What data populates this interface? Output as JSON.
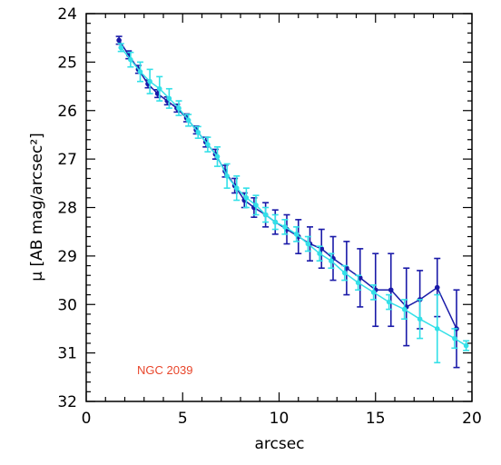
{
  "chart_data": {
    "type": "scatter",
    "title": "",
    "xlabel": "arcsec",
    "ylabel": "μ [AB mag/arcsec²]",
    "xlim": [
      0,
      20
    ],
    "ylim": [
      24,
      32
    ],
    "y_inverted": true,
    "x_ticks": [
      "0",
      "5",
      "10",
      "15",
      "20"
    ],
    "y_ticks": [
      "24",
      "25",
      "26",
      "27",
      "28",
      "29",
      "30",
      "31",
      "32"
    ],
    "annotation": "NGC 2039",
    "annotation_color": "#e8452a",
    "series": [
      {
        "color": "#1a1aa8",
        "x": [
          1.7,
          2.2,
          2.7,
          3.2,
          3.7,
          4.2,
          4.7,
          5.2,
          5.7,
          6.2,
          6.7,
          7.2,
          7.7,
          8.2,
          8.7,
          9.3,
          9.8,
          10.4,
          11.0,
          11.6,
          12.2,
          12.8,
          13.5,
          14.2,
          15.0,
          15.8,
          16.6,
          17.3,
          18.2,
          19.2
        ],
        "y": [
          24.55,
          24.85,
          25.15,
          25.45,
          25.65,
          25.8,
          25.95,
          26.15,
          26.4,
          26.65,
          26.9,
          27.25,
          27.55,
          27.85,
          28.0,
          28.15,
          28.3,
          28.45,
          28.6,
          28.75,
          28.85,
          29.05,
          29.25,
          29.45,
          29.7,
          29.7,
          30.05,
          29.9,
          29.65,
          30.5
        ],
        "err": [
          0.08,
          0.08,
          0.08,
          0.08,
          0.08,
          0.08,
          0.08,
          0.08,
          0.08,
          0.1,
          0.1,
          0.12,
          0.15,
          0.15,
          0.2,
          0.25,
          0.25,
          0.3,
          0.35,
          0.35,
          0.4,
          0.45,
          0.55,
          0.6,
          0.75,
          0.75,
          0.8,
          0.6,
          0.6,
          0.8
        ]
      },
      {
        "color": "#33e0e8",
        "x": [
          1.8,
          2.3,
          2.8,
          3.3,
          3.8,
          4.3,
          4.8,
          5.3,
          5.8,
          6.3,
          6.8,
          7.3,
          7.8,
          8.3,
          8.8,
          9.3,
          9.8,
          10.3,
          10.9,
          11.5,
          12.1,
          12.7,
          13.4,
          14.1,
          14.9,
          15.7,
          16.5,
          17.3,
          18.2,
          19.1,
          19.7
        ],
        "y": [
          24.7,
          24.95,
          25.2,
          25.4,
          25.55,
          25.75,
          25.95,
          26.2,
          26.45,
          26.7,
          26.95,
          27.35,
          27.6,
          27.8,
          27.95,
          28.15,
          28.3,
          28.4,
          28.55,
          28.75,
          28.95,
          29.1,
          29.35,
          29.55,
          29.75,
          29.95,
          30.1,
          30.3,
          30.5,
          30.7,
          30.85
        ],
        "err": [
          0.08,
          0.15,
          0.2,
          0.25,
          0.25,
          0.2,
          0.15,
          0.12,
          0.12,
          0.15,
          0.2,
          0.25,
          0.25,
          0.2,
          0.2,
          0.15,
          0.15,
          0.15,
          0.15,
          0.15,
          0.15,
          0.15,
          0.15,
          0.15,
          0.15,
          0.15,
          0.2,
          0.4,
          0.7,
          0.2,
          0.1
        ]
      }
    ]
  }
}
